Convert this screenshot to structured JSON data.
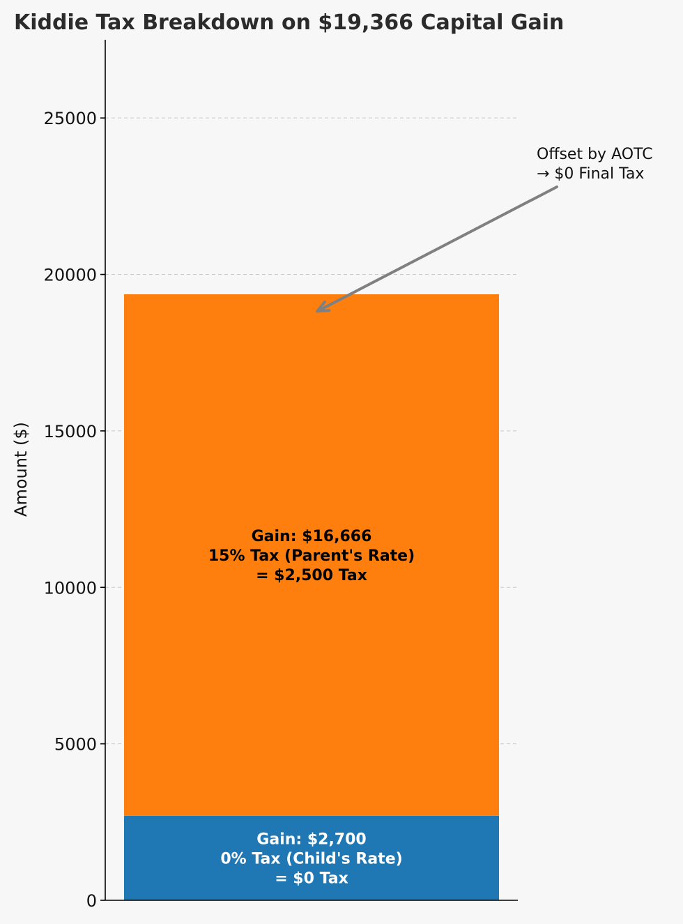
{
  "chart_data": {
    "type": "bar",
    "stacked": true,
    "title": "Kiddie Tax Breakdown on $19,366 Capital Gain",
    "xlabel": "",
    "ylabel": "Amount ($)",
    "ylim": [
      0,
      27500
    ],
    "yticks": [
      0,
      5000,
      10000,
      15000,
      20000,
      25000
    ],
    "grid": true,
    "categories": [
      ""
    ],
    "segments": [
      {
        "value": 2700,
        "color": "#1f77b4",
        "label_lines": [
          "Gain: $2,700",
          "0% Tax (Child's Rate)",
          "= $0 Tax"
        ],
        "label_color": "#ffffff"
      },
      {
        "value": 16666,
        "color": "#ff7f0e",
        "label_lines": [
          "Gain: $16,666",
          "15% Tax (Parent's Rate)",
          "= $2,500 Tax"
        ],
        "label_color": "#000000"
      }
    ],
    "annotation": {
      "lines": [
        "Offset by AOTC",
        "→ $0 Final Tax"
      ],
      "arrow_color": "#808080",
      "points_to_value": 19000
    }
  }
}
